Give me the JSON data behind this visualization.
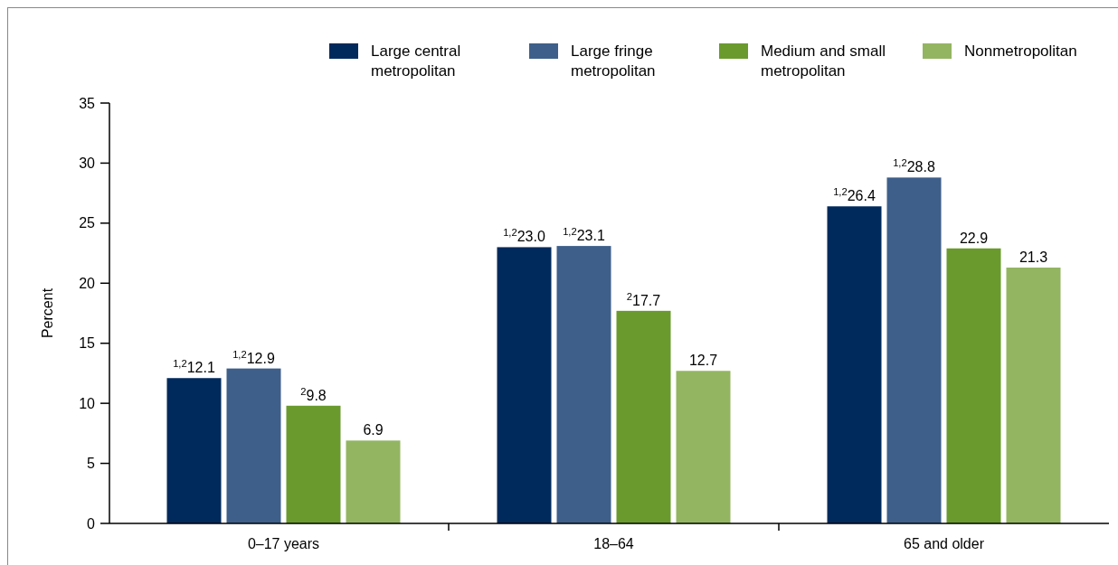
{
  "chart_data": {
    "type": "bar",
    "ylabel": "Percent",
    "categories": [
      "0–17 years",
      "18–64",
      "65 and older"
    ],
    "series": [
      {
        "name": "Large central metropolitan",
        "color": "#002a5c",
        "values": [
          12.1,
          23.0,
          26.4
        ],
        "value_labels": [
          "$^{1,2}$12.1",
          "$^{1,2}$23.0",
          "$^{1,2}$26.4"
        ]
      },
      {
        "name": "Large fringe metropolitan",
        "color": "#3e5f8a",
        "values": [
          12.9,
          23.1,
          28.8
        ],
        "value_labels": [
          "$^{1,2}$12.9",
          "$^{1,2}$23.1",
          "$^{1,2}$28.8"
        ]
      },
      {
        "name": "Medium and small metropolitan",
        "color": "#6a9a2e",
        "values": [
          9.8,
          17.7,
          22.9
        ],
        "value_labels": [
          "$^{2}$9.8",
          "$^{2}$17.7",
          "22.9"
        ]
      },
      {
        "name": "Nonmetropolitan",
        "color": "#93b562",
        "values": [
          6.9,
          12.7,
          21.3
        ],
        "value_labels": [
          "6.9",
          "12.7",
          "21.3"
        ]
      }
    ],
    "ylim": [
      0,
      35
    ],
    "yticks": [
      0,
      5,
      10,
      15,
      20,
      25,
      30,
      35
    ],
    "grid": false,
    "legend": "top right"
  }
}
